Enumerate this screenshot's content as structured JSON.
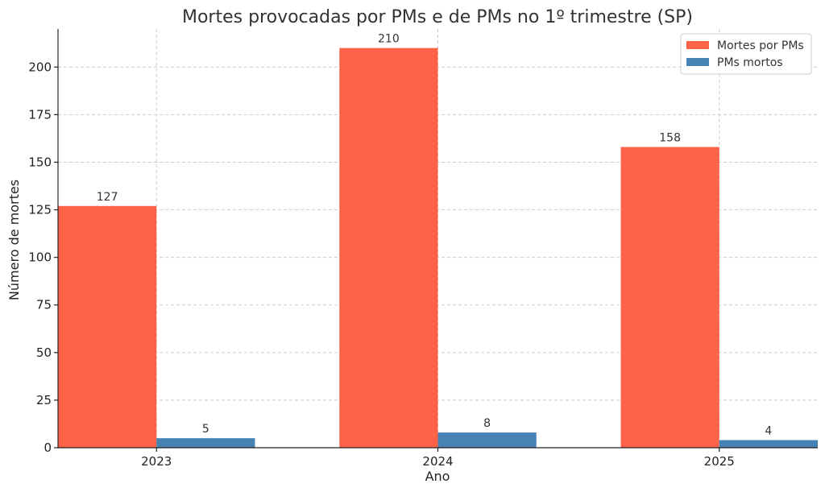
{
  "chart_data": {
    "type": "bar",
    "title": "Mortes provocadas por PMs e de PMs no 1º trimestre (SP)",
    "xlabel": "Ano",
    "ylabel": "Número de mortes",
    "categories": [
      "2023",
      "2024",
      "2025"
    ],
    "series": [
      {
        "name": "Mortes por PMs",
        "values": [
          127,
          210,
          158
        ],
        "color": "#FF6347"
      },
      {
        "name": "PMs mortos",
        "values": [
          5,
          8,
          4
        ],
        "color": "#4682B4"
      }
    ],
    "ylim": [
      0,
      220
    ],
    "yticks": [
      0,
      25,
      50,
      75,
      100,
      125,
      150,
      175,
      200
    ],
    "grid": true,
    "legend_position": "top-right",
    "data_labels": true
  }
}
